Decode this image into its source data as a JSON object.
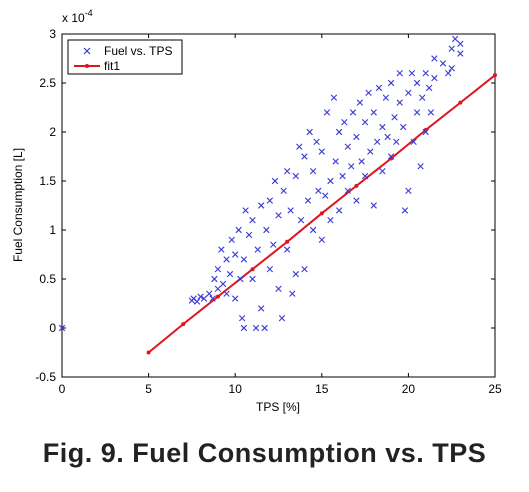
{
  "caption": "Fig. 9. Fuel Consumption vs. TPS",
  "chart_data": {
    "type": "scatter",
    "xlabel": "TPS [%]",
    "ylabel": "Fuel Consumption [L]",
    "y_exponent_label": "x 10",
    "y_exponent_power": "-4",
    "xlim": [
      0,
      25
    ],
    "ylim": [
      -0.5,
      3
    ],
    "xticks": [
      0,
      5,
      10,
      15,
      20,
      25
    ],
    "yticks": [
      -0.5,
      0,
      0.5,
      1,
      1.5,
      2,
      2.5,
      3
    ],
    "ytick_labels": [
      "-0.5",
      "0",
      "0.5",
      "1",
      "1.5",
      "2",
      "2.5",
      "3"
    ],
    "legend_position": "top-left",
    "colors": {
      "scatter": "#3a3ad6",
      "fit": "#e0141e"
    },
    "series": [
      {
        "name": "Fuel vs. TPS",
        "kind": "scatter",
        "marker": "x",
        "points": [
          [
            0,
            0
          ],
          [
            7.5,
            0.28
          ],
          [
            7.6,
            0.3
          ],
          [
            7.8,
            0.27
          ],
          [
            8.0,
            0.32
          ],
          [
            8.2,
            0.3
          ],
          [
            8.5,
            0.35
          ],
          [
            8.7,
            0.3
          ],
          [
            8.8,
            0.5
          ],
          [
            9.0,
            0.4
          ],
          [
            9.0,
            0.6
          ],
          [
            9.2,
            0.8
          ],
          [
            9.3,
            0.45
          ],
          [
            9.5,
            0.35
          ],
          [
            9.5,
            0.7
          ],
          [
            9.7,
            0.55
          ],
          [
            9.8,
            0.9
          ],
          [
            10.0,
            0.3
          ],
          [
            10.0,
            0.75
          ],
          [
            10.2,
            1.0
          ],
          [
            10.3,
            0.5
          ],
          [
            10.4,
            0.1
          ],
          [
            10.5,
            0.0
          ],
          [
            10.5,
            0.7
          ],
          [
            10.6,
            1.2
          ],
          [
            10.8,
            0.95
          ],
          [
            11.0,
            0.5
          ],
          [
            11.0,
            1.1
          ],
          [
            11.2,
            0.0
          ],
          [
            11.3,
            0.8
          ],
          [
            11.5,
            0.2
          ],
          [
            11.5,
            1.25
          ],
          [
            11.7,
            0.0
          ],
          [
            11.8,
            1.0
          ],
          [
            12.0,
            0.6
          ],
          [
            12.0,
            1.3
          ],
          [
            12.2,
            0.85
          ],
          [
            12.3,
            1.5
          ],
          [
            12.5,
            0.4
          ],
          [
            12.5,
            1.15
          ],
          [
            12.7,
            0.1
          ],
          [
            12.8,
            1.4
          ],
          [
            13.0,
            0.8
          ],
          [
            13.0,
            1.6
          ],
          [
            13.2,
            1.2
          ],
          [
            13.3,
            0.35
          ],
          [
            13.5,
            0.55
          ],
          [
            13.5,
            1.55
          ],
          [
            13.7,
            1.85
          ],
          [
            13.8,
            1.1
          ],
          [
            14.0,
            0.6
          ],
          [
            14.0,
            1.75
          ],
          [
            14.2,
            1.3
          ],
          [
            14.3,
            2.0
          ],
          [
            14.5,
            1.0
          ],
          [
            14.5,
            1.6
          ],
          [
            14.7,
            1.9
          ],
          [
            14.8,
            1.4
          ],
          [
            15.0,
            0.9
          ],
          [
            15.0,
            1.8
          ],
          [
            15.2,
            1.35
          ],
          [
            15.3,
            2.2
          ],
          [
            15.5,
            1.5
          ],
          [
            15.5,
            1.1
          ],
          [
            15.7,
            2.35
          ],
          [
            15.8,
            1.7
          ],
          [
            16.0,
            1.2
          ],
          [
            16.0,
            2.0
          ],
          [
            16.2,
            1.55
          ],
          [
            16.3,
            2.1
          ],
          [
            16.5,
            1.4
          ],
          [
            16.5,
            1.85
          ],
          [
            16.7,
            1.65
          ],
          [
            16.8,
            2.2
          ],
          [
            17.0,
            1.3
          ],
          [
            17.0,
            1.95
          ],
          [
            17.2,
            2.3
          ],
          [
            17.3,
            1.7
          ],
          [
            17.5,
            2.1
          ],
          [
            17.5,
            1.55
          ],
          [
            17.7,
            2.4
          ],
          [
            17.8,
            1.8
          ],
          [
            18.0,
            1.25
          ],
          [
            18.0,
            2.2
          ],
          [
            18.2,
            1.9
          ],
          [
            18.3,
            2.45
          ],
          [
            18.5,
            2.05
          ],
          [
            18.5,
            1.6
          ],
          [
            18.7,
            2.35
          ],
          [
            18.8,
            1.95
          ],
          [
            19.0,
            1.75
          ],
          [
            19.0,
            2.5
          ],
          [
            19.2,
            2.15
          ],
          [
            19.3,
            1.9
          ],
          [
            19.5,
            2.3
          ],
          [
            19.5,
            2.6
          ],
          [
            19.7,
            2.05
          ],
          [
            19.8,
            1.2
          ],
          [
            20.0,
            2.4
          ],
          [
            20.0,
            1.4
          ],
          [
            20.2,
            2.6
          ],
          [
            20.3,
            1.9
          ],
          [
            20.5,
            2.2
          ],
          [
            20.5,
            2.5
          ],
          [
            20.7,
            1.65
          ],
          [
            20.8,
            2.35
          ],
          [
            21.0,
            2.6
          ],
          [
            21.0,
            2.0
          ],
          [
            21.2,
            2.45
          ],
          [
            21.3,
            2.2
          ],
          [
            21.5,
            2.55
          ],
          [
            21.5,
            2.75
          ],
          [
            22.0,
            2.7
          ],
          [
            22.3,
            2.6
          ],
          [
            22.5,
            2.85
          ],
          [
            22.5,
            2.65
          ],
          [
            22.7,
            2.95
          ],
          [
            23.0,
            2.8
          ],
          [
            23.0,
            2.9
          ]
        ]
      },
      {
        "name": "fit1",
        "kind": "line",
        "marker": "dot",
        "points": [
          [
            5,
            -0.25
          ],
          [
            7,
            0.04
          ],
          [
            9,
            0.32
          ],
          [
            11,
            0.6
          ],
          [
            13,
            0.88
          ],
          [
            15,
            1.17
          ],
          [
            17,
            1.45
          ],
          [
            19,
            1.73
          ],
          [
            21,
            2.02
          ],
          [
            23,
            2.3
          ],
          [
            25,
            2.58
          ]
        ]
      }
    ]
  }
}
